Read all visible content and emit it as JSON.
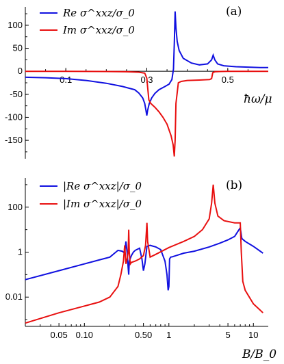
{
  "chart_data": [
    {
      "type": "line",
      "panel_label": "(a)",
      "xlabel": "ħω/μ",
      "ylabel": "",
      "xlim": [
        0,
        0.6
      ],
      "ylim": [
        -190,
        140
      ],
      "x_ticks": [
        0.1,
        0.3,
        0.5
      ],
      "x_tick_labels": [
        "0.1",
        "0.3",
        "0.5"
      ],
      "y_ticks": [
        100,
        50,
        0,
        -50,
        -100,
        -150
      ],
      "y_tick_labels": [
        "100",
        "50",
        "0",
        "-50",
        "-100",
        "-150"
      ],
      "legend_position": "top-left",
      "colors": {
        "re": "#1010e0",
        "im": "#e81010"
      },
      "series": [
        {
          "name": "Re σ^xxz/σ_0",
          "x": [
            0.0,
            0.05,
            0.1,
            0.15,
            0.2,
            0.24,
            0.27,
            0.28,
            0.29,
            0.295,
            0.298,
            0.3,
            0.302,
            0.306,
            0.312,
            0.32,
            0.33,
            0.345,
            0.355,
            0.362,
            0.366,
            0.368,
            0.37,
            0.372,
            0.375,
            0.38,
            0.39,
            0.41,
            0.43,
            0.45,
            0.46,
            0.464,
            0.468,
            0.475,
            0.49,
            0.52,
            0.55,
            0.58,
            0.6
          ],
          "y": [
            -13,
            -14,
            -16,
            -20,
            -26,
            -33,
            -40,
            -47,
            -58,
            -70,
            -85,
            -96,
            -85,
            -70,
            -58,
            -48,
            -40,
            -33,
            -28,
            -18,
            5,
            60,
            130,
            95,
            65,
            45,
            28,
            18,
            14,
            16,
            25,
            35,
            25,
            16,
            12,
            10,
            9,
            8,
            8
          ]
        },
        {
          "name": "Im σ^xxz/σ_0",
          "x": [
            0.0,
            0.1,
            0.2,
            0.25,
            0.28,
            0.295,
            0.3,
            0.305,
            0.31,
            0.32,
            0.33,
            0.34,
            0.35,
            0.36,
            0.365,
            0.368,
            0.37,
            0.372,
            0.378,
            0.385,
            0.4,
            0.43,
            0.455,
            0.46,
            0.463,
            0.468,
            0.48,
            0.5,
            0.55,
            0.6
          ],
          "y": [
            0,
            0,
            -0.5,
            -1,
            -2,
            -4,
            -15,
            -62,
            -70,
            -78,
            -88,
            -100,
            -115,
            -140,
            -160,
            -185,
            -150,
            -70,
            -25,
            -22,
            -20,
            -19,
            -18,
            -16,
            -3,
            -1,
            -0.5,
            0,
            0,
            0
          ]
        }
      ]
    },
    {
      "type": "line",
      "panel_label": "(b)",
      "xlabel": "B/B_0",
      "ylabel": "",
      "x_scale": "log",
      "y_scale": "log",
      "xlim": [
        0.02,
        15
      ],
      "ylim": [
        0.0005,
        2000
      ],
      "x_ticks": [
        0.05,
        0.1,
        0.5,
        1,
        5,
        10
      ],
      "x_tick_labels": [
        "0.05",
        "0.10",
        "0.50",
        "1",
        "5",
        "10"
      ],
      "y_ticks": [
        100,
        1,
        0.01
      ],
      "y_tick_labels": [
        "100",
        "1",
        "0.01"
      ],
      "legend_position": "top-left",
      "colors": {
        "re": "#1010e0",
        "im": "#e81010"
      },
      "series": [
        {
          "name": "|Re σ^xxz|/σ_0",
          "x": [
            0.02,
            0.05,
            0.1,
            0.15,
            0.2,
            0.25,
            0.28,
            0.3,
            0.31,
            0.32,
            0.33,
            0.335,
            0.34,
            0.36,
            0.38,
            0.4,
            0.45,
            0.48,
            0.5,
            0.52,
            0.55,
            0.6,
            0.7,
            0.8,
            0.9,
            0.95,
            0.98,
            1.0,
            1.02,
            1.05,
            1.1,
            1.5,
            2,
            3,
            4,
            5,
            6,
            6.5,
            7,
            7.3,
            8,
            10,
            13
          ],
          "y": [
            0.06,
            0.15,
            0.3,
            0.45,
            0.6,
            1.2,
            1.1,
            0.9,
            3,
            1,
            0.2,
            0.1,
            0.4,
            0.7,
            1,
            1.2,
            1.5,
            0.5,
            0.15,
            0.3,
            1.8,
            2,
            1.7,
            1.3,
            0.4,
            0.1,
            0.02,
            0.03,
            0.5,
            0.6,
            0.62,
            0.9,
            1.1,
            1.7,
            2.5,
            3.5,
            5,
            8,
            12,
            4,
            3,
            1.8,
            0.9
          ]
        },
        {
          "name": "|Im σ^xxz|/σ_0",
          "x": [
            0.02,
            0.05,
            0.1,
            0.15,
            0.2,
            0.25,
            0.27,
            0.29,
            0.3,
            0.31,
            0.32,
            0.33,
            0.335,
            0.34,
            0.345,
            0.35,
            0.36,
            0.4,
            0.45,
            0.5,
            0.53,
            0.55,
            0.56,
            0.6,
            0.7,
            1,
            1.5,
            2,
            2.5,
            3,
            3.2,
            3.35,
            3.5,
            3.8,
            4.5,
            6,
            7,
            7.2,
            7.5,
            8,
            10,
            13
          ],
          "y": [
            0.0007,
            0.002,
            0.004,
            0.006,
            0.01,
            0.03,
            0.1,
            0.4,
            2,
            0.3,
            0.5,
            1,
            10,
            1,
            0.5,
            0.3,
            0.35,
            0.4,
            0.5,
            0.7,
            2,
            20,
            3,
            0.6,
            0.8,
            1.6,
            3,
            5,
            10,
            30,
            150,
            1000,
            150,
            40,
            25,
            20,
            20,
            1,
            0.05,
            0.02,
            0.005,
            0.002
          ]
        }
      ]
    }
  ]
}
